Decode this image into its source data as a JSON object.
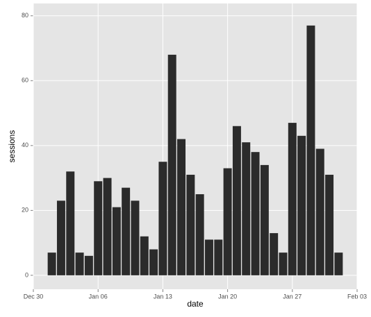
{
  "chart_data": {
    "type": "bar",
    "x_label": "date",
    "y_label": "sessions",
    "x": [
      "Jan 01",
      "Jan 02",
      "Jan 03",
      "Jan 04",
      "Jan 05",
      "Jan 06",
      "Jan 07",
      "Jan 08",
      "Jan 09",
      "Jan 10",
      "Jan 11",
      "Jan 12",
      "Jan 13",
      "Jan 14",
      "Jan 15",
      "Jan 16",
      "Jan 17",
      "Jan 18",
      "Jan 19",
      "Jan 20",
      "Jan 21",
      "Jan 22",
      "Jan 23",
      "Jan 24",
      "Jan 25",
      "Jan 26",
      "Jan 27",
      "Jan 28",
      "Jan 29",
      "Jan 30",
      "Jan 31",
      "Feb 01"
    ],
    "values": [
      7,
      23,
      32,
      7,
      6,
      29,
      30,
      21,
      27,
      23,
      12,
      8,
      35,
      68,
      42,
      31,
      25,
      11,
      11,
      33,
      46,
      41,
      38,
      34,
      13,
      7,
      47,
      43,
      77,
      39,
      31,
      7
    ],
    "color": "#2b2b2b",
    "xlim": [
      "Dec 30",
      "Feb 03"
    ],
    "xticks": [
      "Dec 30",
      "Jan 06",
      "Jan 13",
      "Jan 20",
      "Jan 27",
      "Feb 03"
    ],
    "ylim": [
      -4.3,
      83.8
    ],
    "yticks": [
      0,
      20,
      40,
      60,
      80
    ],
    "grid": true
  }
}
